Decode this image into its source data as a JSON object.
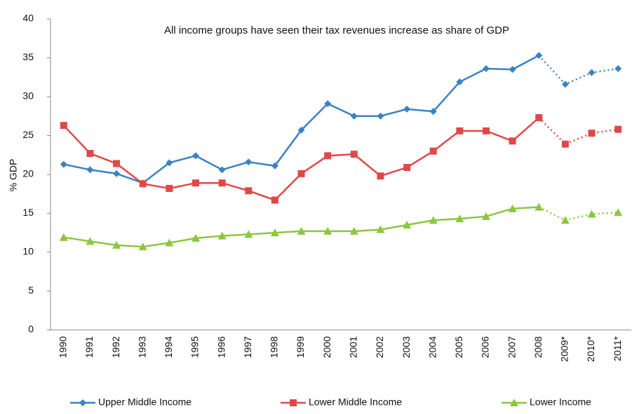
{
  "chart_data": {
    "type": "line",
    "title": "All income groups have seen their tax revenues increase as share of GDP",
    "y_label": "% GDP",
    "categories": [
      "1990",
      "1991",
      "1992",
      "1993",
      "1994",
      "1995",
      "1996",
      "1997",
      "1998",
      "1999",
      "2000",
      "2001",
      "2002",
      "2003",
      "2004",
      "2005",
      "2006",
      "2007",
      "2008",
      "2009*",
      "2010*",
      "2011*"
    ],
    "dotted_after": "2008",
    "series": [
      {
        "name": "Upper Middle Income",
        "color": "#3b82c4",
        "marker": "diamond",
        "values": [
          21.3,
          20.6,
          20.1,
          18.9,
          21.5,
          22.4,
          20.6,
          21.6,
          21.1,
          25.7,
          29.1,
          27.5,
          27.5,
          28.4,
          28.1,
          31.9,
          33.6,
          33.5,
          35.3,
          31.6,
          33.1,
          33.6
        ]
      },
      {
        "name": "Lower Middle Income",
        "color": "#e04848",
        "marker": "square",
        "values": [
          26.3,
          22.7,
          21.4,
          18.8,
          18.2,
          18.9,
          18.9,
          17.9,
          16.7,
          20.1,
          22.4,
          22.6,
          19.8,
          20.9,
          23.0,
          25.6,
          25.6,
          24.3,
          27.3,
          23.9,
          25.3,
          25.8
        ]
      },
      {
        "name": "Lower Income",
        "color": "#8cc63f",
        "marker": "triangle",
        "values": [
          11.9,
          11.4,
          10.9,
          10.7,
          11.2,
          11.8,
          12.1,
          12.3,
          12.5,
          12.7,
          12.7,
          12.7,
          12.9,
          13.5,
          14.1,
          14.3,
          14.6,
          15.6,
          15.8,
          14.1,
          14.9,
          15.1
        ]
      }
    ],
    "ylim": [
      0,
      40
    ],
    "yticks": [
      0,
      5,
      10,
      15,
      20,
      25,
      30,
      35,
      40
    ],
    "grid": false,
    "legend": "bottom"
  }
}
